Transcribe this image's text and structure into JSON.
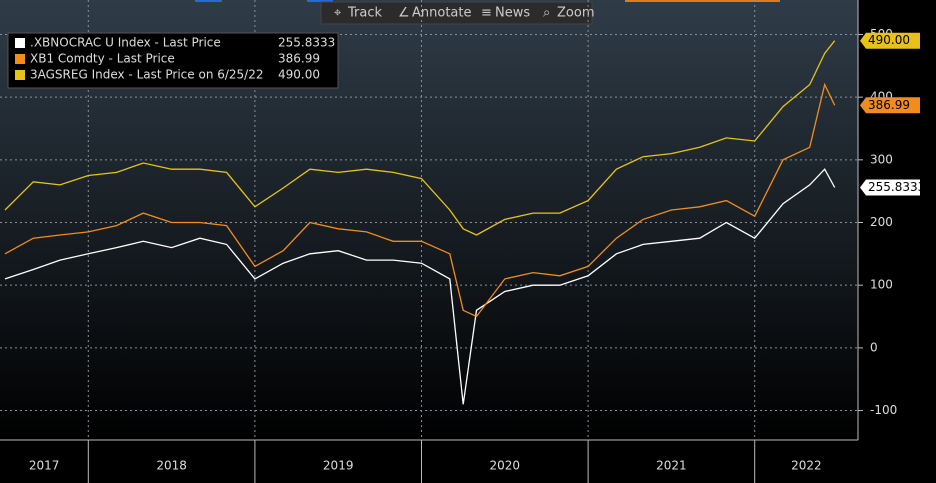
{
  "toolbar": {
    "items": [
      "Track",
      "Annotate",
      "News",
      "Zoom"
    ]
  },
  "chart_data": {
    "type": "line",
    "categories": [
      "2017",
      "2018",
      "2019",
      "2020",
      "2021",
      "2022"
    ],
    "x": [
      2017.5,
      2017.67,
      2017.83,
      2018,
      2018.17,
      2018.33,
      2018.5,
      2018.67,
      2018.83,
      2019,
      2019.17,
      2019.33,
      2019.5,
      2019.67,
      2019.83,
      2020,
      2020.17,
      2020.25,
      2020.33,
      2020.5,
      2020.67,
      2020.83,
      2021,
      2021.17,
      2021.33,
      2021.5,
      2021.67,
      2021.83,
      2022,
      2022.17,
      2022.33,
      2022.42,
      2022.48
    ],
    "xlim": [
      2017.47,
      2022.62
    ],
    "xticks": [
      2018,
      2019,
      2020,
      2021,
      2022
    ],
    "ylim": [
      -147,
      555
    ],
    "yticks": [
      -100,
      0,
      100,
      200,
      300,
      400,
      500
    ],
    "grid": true,
    "legend": "upper left",
    "series": [
      {
        "name": ".XBNOCRAC U Index - Last Price",
        "color": "#ffffff",
        "values": [
          110,
          125,
          140,
          150,
          160,
          170,
          160,
          175,
          165,
          110,
          135,
          150,
          155,
          140,
          140,
          135,
          110,
          -90,
          60,
          90,
          100,
          100,
          115,
          150,
          165,
          170,
          175,
          200,
          175,
          230,
          260,
          285,
          255.8333
        ],
        "last_label": "255.8333"
      },
      {
        "name": "XB1 Comdty - Last Price",
        "color": "#f28c1c",
        "values": [
          150,
          175,
          180,
          185,
          195,
          215,
          200,
          200,
          195,
          130,
          155,
          200,
          190,
          185,
          170,
          170,
          150,
          60,
          50,
          110,
          120,
          115,
          130,
          175,
          205,
          220,
          225,
          235,
          210,
          300,
          320,
          420,
          386.99
        ],
        "last_label": "386.99"
      },
      {
        "name": "3AGSREG Index - Last Price on 6/25/22",
        "color": "#e8c21a",
        "values": [
          220,
          265,
          260,
          275,
          280,
          295,
          285,
          285,
          280,
          225,
          255,
          285,
          280,
          285,
          280,
          270,
          220,
          190,
          180,
          205,
          215,
          215,
          235,
          285,
          305,
          310,
          320,
          335,
          330,
          385,
          420,
          470,
          490
        ],
        "last_label": "490.00"
      }
    ]
  }
}
